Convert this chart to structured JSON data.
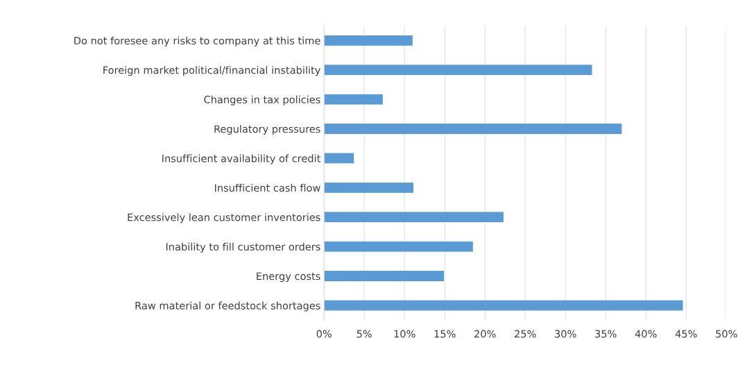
{
  "chart_data": {
    "type": "bar",
    "orientation": "horizontal",
    "categories": [
      "Do not foresee any risks to company at this time",
      "Foreign market political/financial instability",
      "Changes in tax policies",
      "Regulatory pressures",
      "Insufficient availability of credit",
      "Insufficient cash flow",
      "Excessively lean customer inventories",
      "Inability to fill customer orders",
      "Energy costs",
      "Raw material or feedstock shortages"
    ],
    "values": [
      11.0,
      33.3,
      7.3,
      37.0,
      3.7,
      11.1,
      22.3,
      18.5,
      14.9,
      44.6
    ],
    "color": "#5b9bd5",
    "xlim": [
      0,
      50
    ],
    "xticks": [
      {
        "value": 0,
        "label": "0%"
      },
      {
        "value": 5,
        "label": "5%"
      },
      {
        "value": 10,
        "label": "10%"
      },
      {
        "value": 15,
        "label": "15%"
      },
      {
        "value": 20,
        "label": "20%"
      },
      {
        "value": 25,
        "label": "25%"
      },
      {
        "value": 30,
        "label": "30%"
      },
      {
        "value": 35,
        "label": "35%"
      },
      {
        "value": 40,
        "label": "40%"
      },
      {
        "value": 45,
        "label": "45%"
      },
      {
        "value": 50,
        "label": "50%"
      }
    ],
    "grid": "x"
  }
}
